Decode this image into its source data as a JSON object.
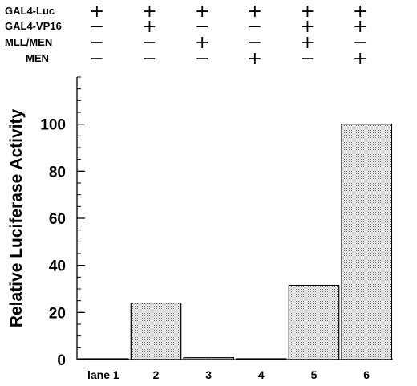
{
  "chart_data": {
    "type": "bar",
    "title": "",
    "xlabel": "",
    "ylabel": "Relative Luciferase Activity",
    "ylim": [
      0,
      120
    ],
    "yticks": [
      0,
      20,
      40,
      60,
      80,
      100
    ],
    "grid": false,
    "categories": [
      "lane 1",
      "2",
      "3",
      "4",
      "5",
      "6"
    ],
    "values": [
      0.3,
      24,
      0.8,
      0.3,
      31.5,
      100
    ],
    "bar_fill": "stippled-gray",
    "conditions": [
      {
        "label": "GAL4-Luc",
        "signs": [
          "+",
          "+",
          "+",
          "+",
          "+",
          "+"
        ]
      },
      {
        "label": "GAL4-VP16",
        "signs": [
          "−",
          "+",
          "−",
          "−",
          "+",
          "+"
        ]
      },
      {
        "label": "MLL/MEN",
        "signs": [
          "−",
          "−",
          "+",
          "−",
          "+",
          "−"
        ]
      },
      {
        "label": "MEN",
        "signs": [
          "−",
          "−",
          "−",
          "+",
          "−",
          "+"
        ]
      }
    ]
  }
}
